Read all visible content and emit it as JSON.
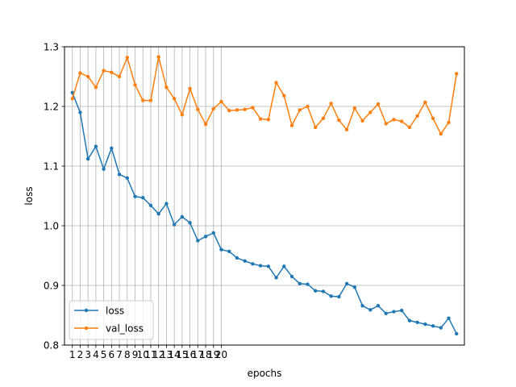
{
  "chart_data": {
    "type": "line",
    "xlabel": "epochs",
    "ylabel": "loss",
    "xlim": [
      0,
      51
    ],
    "ylim": [
      0.8,
      1.3
    ],
    "xticks": [
      1,
      2,
      3,
      4,
      5,
      6,
      7,
      8,
      9,
      10,
      11,
      12,
      13,
      14,
      15,
      16,
      17,
      18,
      19,
      20
    ],
    "xtick_labels": [
      "1",
      "2",
      "3",
      "4",
      "5",
      "6",
      "7",
      "8",
      "9",
      "10",
      "11",
      "12",
      "13",
      "14",
      "15",
      "16",
      "17",
      "18",
      "19",
      "20"
    ],
    "yticks": [
      0.8,
      0.9,
      1.0,
      1.1,
      1.2,
      1.3
    ],
    "ytick_labels": [
      "0.8",
      "0.9",
      "1.0",
      "1.1",
      "1.2",
      "1.3"
    ],
    "grid": true,
    "legend_position": "lower-left",
    "x": [
      1,
      2,
      3,
      4,
      5,
      6,
      7,
      8,
      9,
      10,
      11,
      12,
      13,
      14,
      15,
      16,
      17,
      18,
      19,
      20,
      21,
      22,
      23,
      24,
      25,
      26,
      27,
      28,
      29,
      30,
      31,
      32,
      33,
      34,
      35,
      36,
      37,
      38,
      39,
      40,
      41,
      42,
      43,
      44,
      45,
      46,
      47,
      48,
      49,
      50
    ],
    "series": [
      {
        "name": "loss",
        "color": "#1f77b4",
        "values": [
          1.223,
          1.19,
          1.112,
          1.133,
          1.095,
          1.13,
          1.086,
          1.08,
          1.049,
          1.047,
          1.034,
          1.02,
          1.037,
          1.002,
          1.015,
          1.005,
          0.975,
          0.982,
          0.988,
          0.96,
          0.957,
          0.946,
          0.941,
          0.936,
          0.933,
          0.932,
          0.913,
          0.932,
          0.915,
          0.903,
          0.902,
          0.891,
          0.89,
          0.882,
          0.881,
          0.903,
          0.897,
          0.866,
          0.859,
          0.866,
          0.853,
          0.856,
          0.858,
          0.841,
          0.838,
          0.835,
          0.832,
          0.829,
          0.845,
          0.819
        ]
      },
      {
        "name": "val_loss",
        "color": "#ff7f0e",
        "values": [
          1.213,
          1.256,
          1.25,
          1.232,
          1.26,
          1.257,
          1.25,
          1.282,
          1.236,
          1.21,
          1.21,
          1.283,
          1.232,
          1.213,
          1.186,
          1.23,
          1.195,
          1.17,
          1.196,
          1.208,
          1.193,
          1.194,
          1.195,
          1.198,
          1.179,
          1.178,
          1.24,
          1.218,
          1.168,
          1.194,
          1.2,
          1.165,
          1.18,
          1.205,
          1.177,
          1.161,
          1.197,
          1.176,
          1.19,
          1.204,
          1.171,
          1.178,
          1.175,
          1.165,
          1.184,
          1.207,
          1.18,
          1.154,
          1.173,
          1.255
        ]
      }
    ]
  }
}
